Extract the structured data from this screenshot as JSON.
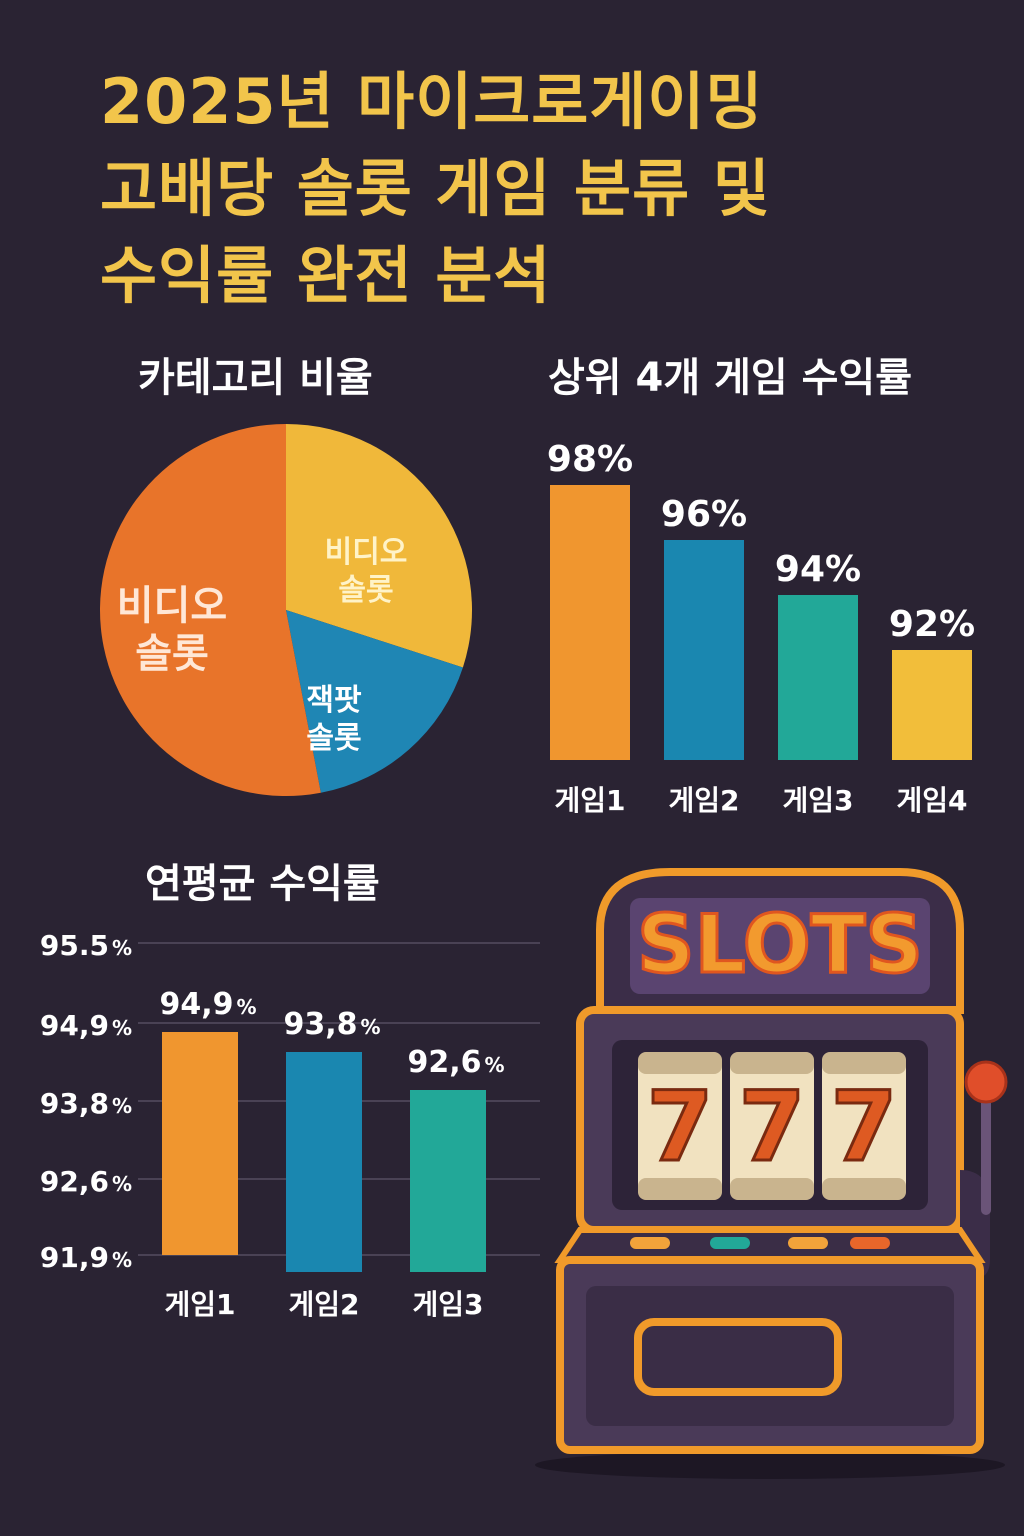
{
  "title_lines": [
    "2025년 마이크로게이밍",
    "고배당 솔롯 게임 분류 및",
    "수익률 완전 분석"
  ],
  "sections": {
    "pie_title": "카테고리 비율",
    "bar_title": "상위 4개 게임 수익률",
    "avg_title": "연평균 수익률"
  },
  "chart_data": [
    {
      "type": "pie",
      "title": "카테고리 비율",
      "slices": [
        {
          "label": [
            "비디오",
            "솔롯"
          ],
          "value": 30,
          "color": "#f0b83a"
        },
        {
          "label": [
            "잭팟",
            "솔롯"
          ],
          "value": 17,
          "color": "#1f86b4"
        },
        {
          "label": [
            "비디오",
            "솔롯"
          ],
          "value": 53,
          "color": "#e8742a"
        }
      ]
    },
    {
      "type": "bar",
      "title": "상위 4개 게임 수익률",
      "categories": [
        "게임1",
        "게임2",
        "게임3",
        "게임4"
      ],
      "values": [
        98,
        96,
        94,
        92
      ],
      "value_labels": [
        "98%",
        "96%",
        "94%",
        "92%"
      ],
      "colors": [
        "#f0962f",
        "#1a87b0",
        "#22a898",
        "#f2be3a"
      ]
    },
    {
      "type": "bar",
      "title": "연평균 수익률",
      "categories": [
        "게임1",
        "게임2",
        "게임3"
      ],
      "values": [
        94.9,
        93.8,
        92.6
      ],
      "value_labels": [
        "94,9",
        "93,8",
        "92,6"
      ],
      "yticks": [
        95.5,
        94.9,
        93.8,
        92.6,
        91.9
      ],
      "ytick_labels": [
        "95.5",
        "94,9",
        "93,8",
        "92,6",
        "91,9"
      ],
      "unit": "%",
      "grid": true,
      "colors": [
        "#f0962f",
        "#1a87b0",
        "#22a898"
      ]
    }
  ],
  "slot_machine": {
    "sign": "SLOTS",
    "reels": [
      "7",
      "7",
      "7"
    ]
  },
  "colors": {
    "background": "#2a2333",
    "title": "#f2c54b",
    "slot_frame": "#f09a2a",
    "slot_body": "#4a3a58"
  }
}
